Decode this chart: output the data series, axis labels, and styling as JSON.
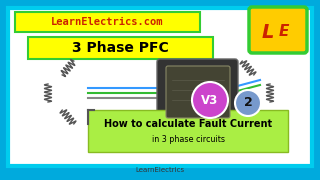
{
  "bg_outer": "#00aadd",
  "bg_inner": "#ffffff",
  "border_color": "#00ccee",
  "title_box_color": "#ffff00",
  "title_text": "3 Phase PFC",
  "title_text_color": "#000000",
  "website_box_color": "#ffff00",
  "website_text": "LearnElectrics.com",
  "website_text_color": "#cc2200",
  "logo_bg": "#ffcc00",
  "logo_text_L": "L",
  "logo_text_E": "E",
  "logo_border": "#33cc33",
  "subtitle_box_color": "#aaee44",
  "subtitle_text": "How to calculate Fault Current",
  "subtitle_text2": "in 3 phase circuits",
  "subtitle_text_color": "#000000",
  "footer_text": "LearnElectrics",
  "footer_text_color": "#333333",
  "v3_circle_color": "#cc44cc",
  "v3_text": "V3",
  "v3_text_color": "#ffffff",
  "num2_circle_color": "#7799cc",
  "num2_text": "2",
  "num2_text_color": "#111111",
  "coil_color": "#555555",
  "wire_blue": "#3399ff",
  "wire_green": "#33bb33",
  "wire_grey": "#888888",
  "meter_color": "#333333",
  "meter_screen": "#555544"
}
